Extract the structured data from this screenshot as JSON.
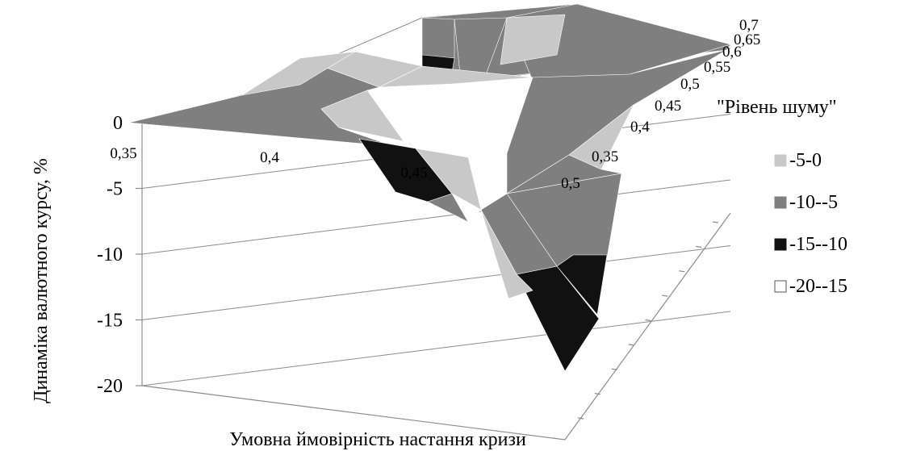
{
  "chart_data": {
    "type": "surface",
    "ylabel": "Динаміка валютного курсу, %",
    "xlabel": "Умовна ймовірність настання кризи",
    "zlabel": "\"Рівень шуму\"",
    "x_ticks": [
      "0,35",
      "0,4",
      "0,45",
      "0,5"
    ],
    "z_ticks": [
      "0,35",
      "0,4",
      "0,45",
      "0,5",
      "0,55",
      "0,6",
      "0,65",
      "0,7"
    ],
    "y_ticks": [
      "0",
      "-5",
      "-10",
      "-15",
      "-20"
    ],
    "ylim": [
      -20,
      0
    ],
    "bands": [
      {
        "label": "-5-0",
        "from": -5,
        "to": 0,
        "color": "#c8c8c8"
      },
      {
        "label": "-10--5",
        "from": -10,
        "to": -5,
        "color": "#7f7f7f"
      },
      {
        "label": "-15--10",
        "from": -15,
        "to": -10,
        "color": "#111111"
      },
      {
        "label": "-20--15",
        "from": -20,
        "to": -15,
        "color": "#ffffff"
      }
    ],
    "legend_position": "right"
  }
}
